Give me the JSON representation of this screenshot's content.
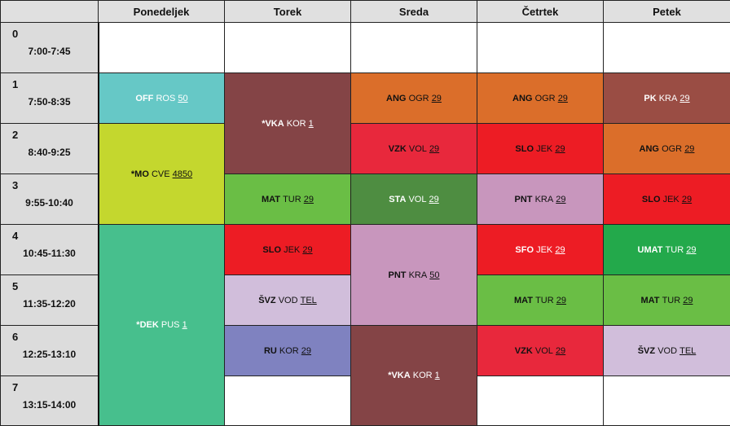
{
  "days": [
    "Ponedeljek",
    "Torek",
    "Sreda",
    "Četrtek",
    "Petek"
  ],
  "periods": [
    {
      "num": "0",
      "time": "7:00-7:45"
    },
    {
      "num": "1",
      "time": "7:50-8:35"
    },
    {
      "num": "2",
      "time": "8:40-9:25"
    },
    {
      "num": "3",
      "time": "9:55-10:40"
    },
    {
      "num": "4",
      "time": "10:45-11:30"
    },
    {
      "num": "5",
      "time": "11:35-12:20"
    },
    {
      "num": "6",
      "time": "12:25-13:10"
    },
    {
      "num": "7",
      "time": "13:15-14:00"
    }
  ],
  "lessons": [
    {
      "day": 0,
      "start": 1,
      "span": 1,
      "subject": "OFF",
      "teacher": "ROS",
      "room": "50",
      "color": "#66c8c6",
      "text_color": "#ffffff"
    },
    {
      "day": 0,
      "start": 2,
      "span": 2,
      "subject": "*MO",
      "teacher": "CVE",
      "room": "4850",
      "color": "#c4d72e",
      "text_color": "#111111"
    },
    {
      "day": 0,
      "start": 4,
      "span": 4,
      "subject": "*DEK",
      "teacher": "PUS",
      "room": "1",
      "color": "#47bf8d",
      "text_color": "#ffffff"
    },
    {
      "day": 1,
      "start": 1,
      "span": 2,
      "subject": "*VKA",
      "teacher": "KOR",
      "room": "1",
      "color": "#844446",
      "text_color": "#ffffff"
    },
    {
      "day": 1,
      "start": 3,
      "span": 1,
      "subject": "MAT",
      "teacher": "TUR",
      "room": "29",
      "color": "#6abe45",
      "text_color": "#111111"
    },
    {
      "day": 1,
      "start": 4,
      "span": 1,
      "subject": "SLO",
      "teacher": "JEK",
      "room": "29",
      "color": "#ed1c24",
      "text_color": "#111111"
    },
    {
      "day": 1,
      "start": 5,
      "span": 1,
      "subject": "ŠVZ",
      "teacher": "VOD",
      "room": "TEL",
      "color": "#d1bedb",
      "text_color": "#111111"
    },
    {
      "day": 1,
      "start": 6,
      "span": 1,
      "subject": "RU",
      "teacher": "KOR",
      "room": "29",
      "color": "#7f82c0",
      "text_color": "#111111"
    },
    {
      "day": 2,
      "start": 1,
      "span": 1,
      "subject": "ANG",
      "teacher": "OGR",
      "room": "29",
      "color": "#db6e2a",
      "text_color": "#111111"
    },
    {
      "day": 2,
      "start": 2,
      "span": 1,
      "subject": "VZK",
      "teacher": "VOL",
      "room": "29",
      "color": "#e8283c",
      "text_color": "#111111"
    },
    {
      "day": 2,
      "start": 3,
      "span": 1,
      "subject": "STA",
      "teacher": "VOL",
      "room": "29",
      "color": "#4e8d41",
      "text_color": "#ffffff"
    },
    {
      "day": 2,
      "start": 4,
      "span": 2,
      "subject": "PNT",
      "teacher": "KRA",
      "room": "50",
      "color": "#c896bd",
      "text_color": "#111111"
    },
    {
      "day": 2,
      "start": 6,
      "span": 2,
      "subject": "*VKA",
      "teacher": "KOR",
      "room": "1",
      "color": "#844446",
      "text_color": "#ffffff"
    },
    {
      "day": 3,
      "start": 1,
      "span": 1,
      "subject": "ANG",
      "teacher": "OGR",
      "room": "29",
      "color": "#db6e2a",
      "text_color": "#111111"
    },
    {
      "day": 3,
      "start": 2,
      "span": 1,
      "subject": "SLO",
      "teacher": "JEK",
      "room": "29",
      "color": "#ed1c24",
      "text_color": "#111111"
    },
    {
      "day": 3,
      "start": 3,
      "span": 1,
      "subject": "PNT",
      "teacher": "KRA",
      "room": "29",
      "color": "#c896bd",
      "text_color": "#111111"
    },
    {
      "day": 3,
      "start": 4,
      "span": 1,
      "subject": "SFO",
      "teacher": "JEK",
      "room": "29",
      "color": "#ed1c24",
      "text_color": "#ffffff"
    },
    {
      "day": 3,
      "start": 5,
      "span": 1,
      "subject": "MAT",
      "teacher": "TUR",
      "room": "29",
      "color": "#6abe45",
      "text_color": "#111111"
    },
    {
      "day": 3,
      "start": 6,
      "span": 1,
      "subject": "VZK",
      "teacher": "VOL",
      "room": "29",
      "color": "#e8283c",
      "text_color": "#111111"
    },
    {
      "day": 4,
      "start": 1,
      "span": 1,
      "subject": "PK",
      "teacher": "KRA",
      "room": "29",
      "color": "#9a4d44",
      "text_color": "#ffffff"
    },
    {
      "day": 4,
      "start": 2,
      "span": 1,
      "subject": "ANG",
      "teacher": "OGR",
      "room": "29",
      "color": "#db6e2a",
      "text_color": "#111111"
    },
    {
      "day": 4,
      "start": 3,
      "span": 1,
      "subject": "SLO",
      "teacher": "JEK",
      "room": "29",
      "color": "#ed1c24",
      "text_color": "#111111"
    },
    {
      "day": 4,
      "start": 4,
      "span": 1,
      "subject": "UMAT",
      "teacher": "TUR",
      "room": "29",
      "color": "#23a94b",
      "text_color": "#ffffff"
    },
    {
      "day": 4,
      "start": 5,
      "span": 1,
      "subject": "MAT",
      "teacher": "TUR",
      "room": "29",
      "color": "#6abe45",
      "text_color": "#111111"
    },
    {
      "day": 4,
      "start": 6,
      "span": 1,
      "subject": "ŠVZ",
      "teacher": "VOD",
      "room": "TEL",
      "color": "#d1bedb",
      "text_color": "#111111"
    }
  ]
}
